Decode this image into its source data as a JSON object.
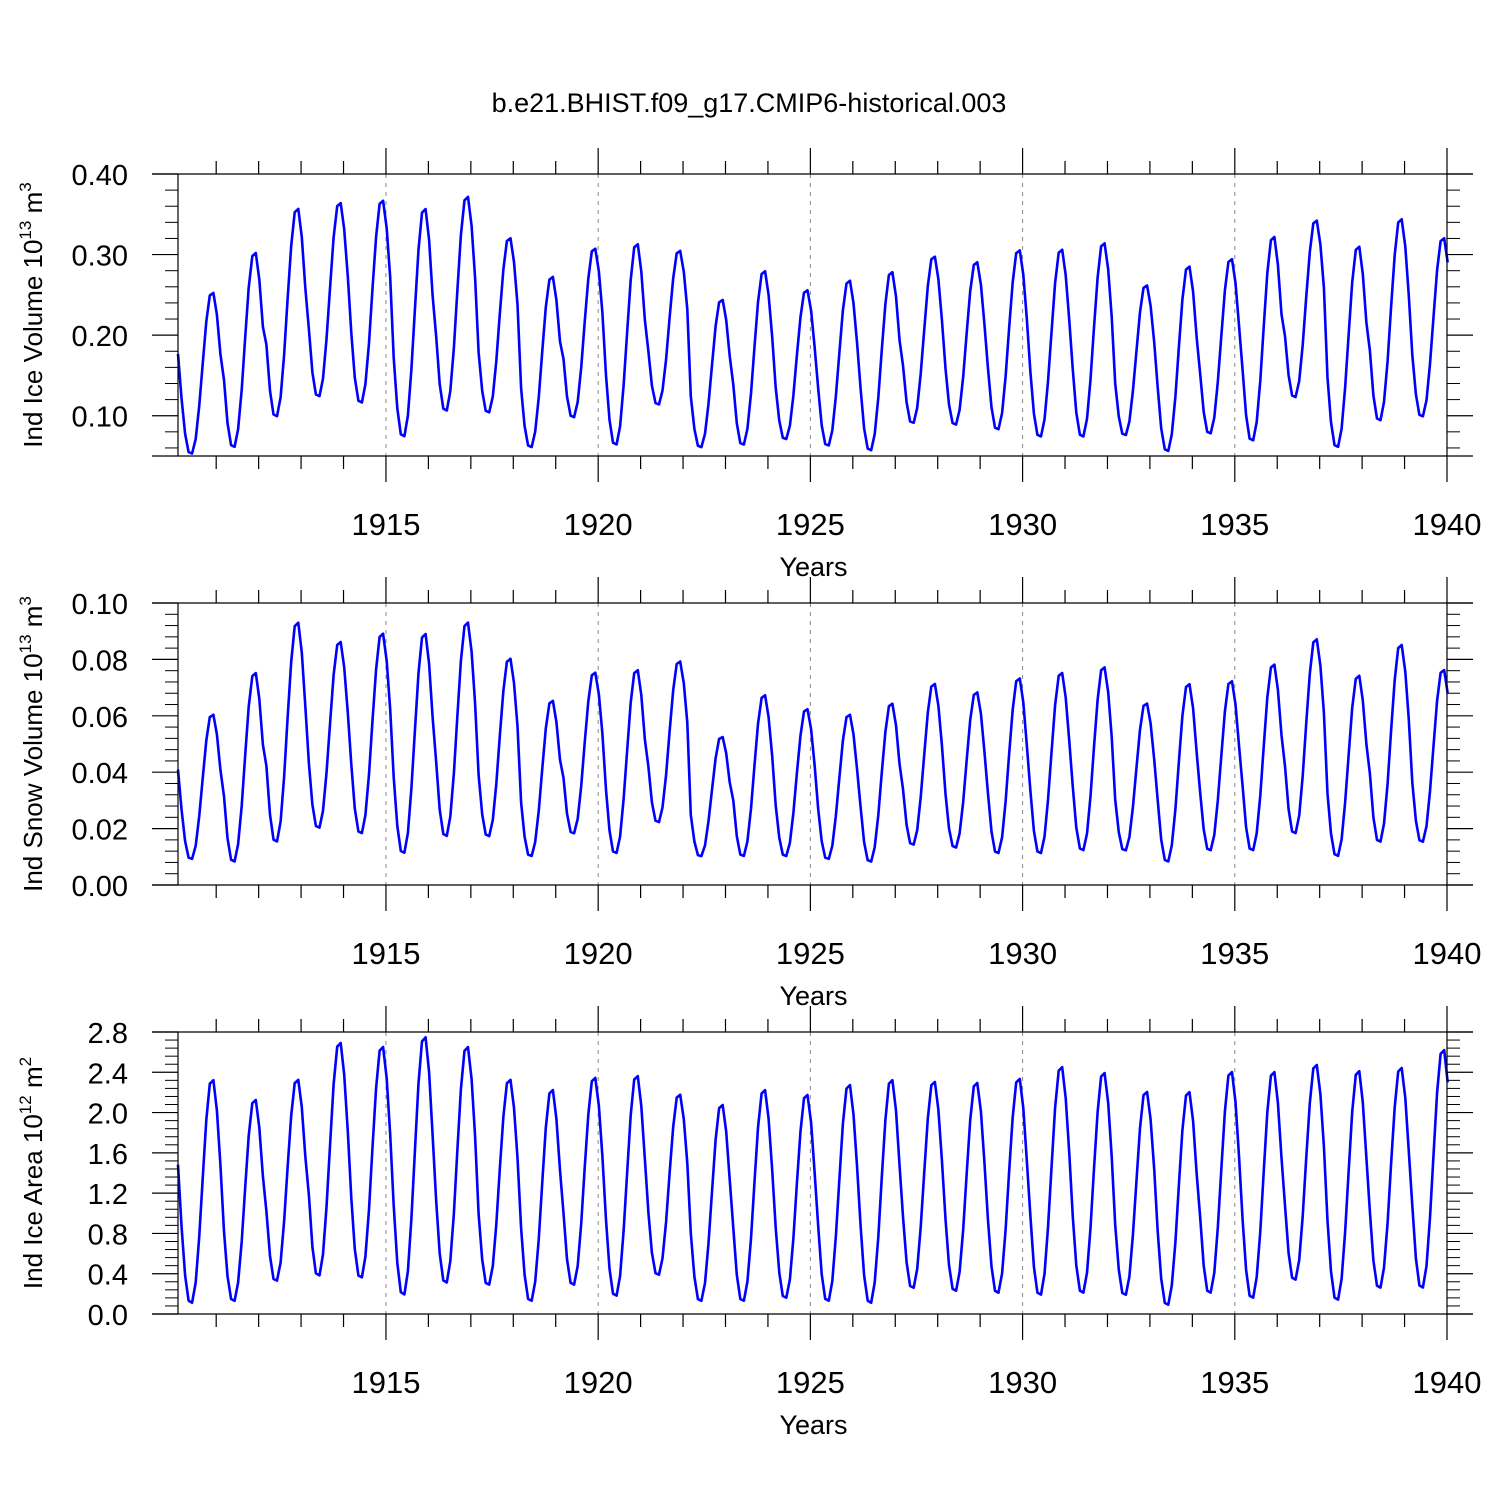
{
  "title": "b.e21.BHIST.f09_g17.CMIP6-historical.003",
  "line_color": "#0000ff",
  "chart_data": [
    {
      "type": "line",
      "ylabel": "Ind Ice Volume 10",
      "ylabel_exp": "13",
      "ylabel_unit": " m",
      "ylabel_unit_exp": "3",
      "xlabel": "Years",
      "xlim": [
        1910.1,
        1940.0
      ],
      "ylim": [
        0.05,
        0.4
      ],
      "yticks": [
        0.1,
        0.2,
        0.3,
        0.4
      ],
      "ytick_labels": [
        "0.10",
        "0.20",
        "0.30",
        "0.40"
      ],
      "xticks": [
        1915,
        1920,
        1925,
        1930,
        1935,
        1940
      ],
      "xtick_labels": [
        "1915",
        "1920",
        "1925",
        "1930",
        "1935",
        "1940"
      ],
      "start_year": 1910.1,
      "step": 0.0833333,
      "series": [
        {
          "name": "Ind Ice Volume",
          "peaks": [
            0.255,
            0.305,
            0.36,
            0.367,
            0.37,
            0.36,
            0.375,
            0.323,
            0.275,
            0.31,
            0.316,
            0.307,
            0.246,
            0.282,
            0.258,
            0.27,
            0.281,
            0.3,
            0.293,
            0.308,
            0.309,
            0.317,
            0.264,
            0.288,
            0.297,
            0.325,
            0.345,
            0.313,
            0.347,
            0.323
          ],
          "troughs": [
            0.052,
            0.06,
            0.098,
            0.123,
            0.115,
            0.073,
            0.105,
            0.103,
            0.06,
            0.097,
            0.063,
            0.113,
            0.06,
            0.063,
            0.07,
            0.062,
            0.056,
            0.09,
            0.088,
            0.082,
            0.073,
            0.073,
            0.075,
            0.055,
            0.077,
            0.068,
            0.122,
            0.06,
            0.093,
            0.098
          ]
        }
      ]
    },
    {
      "type": "line",
      "ylabel": "Ind Snow Volume 10",
      "ylabel_exp": "13",
      "ylabel_unit": " m",
      "ylabel_unit_exp": "3",
      "xlabel": "Years",
      "xlim": [
        1910.1,
        1940.0
      ],
      "ylim": [
        0.0,
        0.1
      ],
      "yticks": [
        0.0,
        0.02,
        0.04,
        0.06,
        0.08,
        0.1
      ],
      "ytick_labels": [
        "0.00",
        "0.02",
        "0.04",
        "0.06",
        "0.08",
        "0.10"
      ],
      "xticks": [
        1915,
        1920,
        1925,
        1930,
        1935,
        1940
      ],
      "xtick_labels": [
        "1915",
        "1920",
        "1925",
        "1930",
        "1935",
        "1940"
      ],
      "start_year": 1910.1,
      "step": 0.0833333,
      "series": [
        {
          "name": "Ind Snow Volume",
          "peaks": [
            0.061,
            0.076,
            0.094,
            0.087,
            0.09,
            0.09,
            0.094,
            0.081,
            0.066,
            0.076,
            0.077,
            0.08,
            0.053,
            0.068,
            0.063,
            0.061,
            0.065,
            0.072,
            0.069,
            0.074,
            0.076,
            0.078,
            0.065,
            0.072,
            0.073,
            0.079,
            0.088,
            0.075,
            0.086,
            0.077
          ],
          "troughs": [
            0.009,
            0.008,
            0.015,
            0.02,
            0.018,
            0.011,
            0.017,
            0.017,
            0.01,
            0.018,
            0.011,
            0.022,
            0.01,
            0.01,
            0.01,
            0.009,
            0.008,
            0.014,
            0.013,
            0.011,
            0.011,
            0.012,
            0.012,
            0.008,
            0.012,
            0.012,
            0.018,
            0.01,
            0.015,
            0.015
          ]
        }
      ]
    },
    {
      "type": "line",
      "ylabel": "Ind Ice Area 10",
      "ylabel_exp": "12",
      "ylabel_unit": " m",
      "ylabel_unit_exp": "2",
      "xlabel": "Years",
      "xlim": [
        1910.1,
        1940.0
      ],
      "ylim": [
        0.0,
        2.8
      ],
      "yticks": [
        0.0,
        0.4,
        0.8,
        1.2,
        1.6,
        2.0,
        2.4,
        2.8
      ],
      "ytick_labels": [
        "0.0",
        "0.4",
        "0.8",
        "1.2",
        "1.6",
        "2.0",
        "2.4",
        "2.8"
      ],
      "xticks": [
        1915,
        1920,
        1925,
        1930,
        1935,
        1940
      ],
      "xtick_labels": [
        "1915",
        "1920",
        "1925",
        "1930",
        "1935",
        "1940"
      ],
      "start_year": 1910.1,
      "step": 0.0833333,
      "series": [
        {
          "name": "Ind Ice Area",
          "peaks": [
            2.35,
            2.15,
            2.35,
            2.72,
            2.68,
            2.78,
            2.68,
            2.35,
            2.25,
            2.37,
            2.39,
            2.2,
            2.1,
            2.25,
            2.2,
            2.3,
            2.35,
            2.33,
            2.32,
            2.36,
            2.48,
            2.42,
            2.23,
            2.23,
            2.43,
            2.43,
            2.5,
            2.44,
            2.47,
            2.65
          ],
          "troughs": [
            0.1,
            0.12,
            0.32,
            0.37,
            0.35,
            0.18,
            0.3,
            0.28,
            0.12,
            0.28,
            0.17,
            0.38,
            0.12,
            0.12,
            0.15,
            0.12,
            0.1,
            0.25,
            0.22,
            0.2,
            0.18,
            0.2,
            0.18,
            0.08,
            0.2,
            0.15,
            0.33,
            0.13,
            0.25,
            0.25
          ]
        }
      ]
    }
  ]
}
